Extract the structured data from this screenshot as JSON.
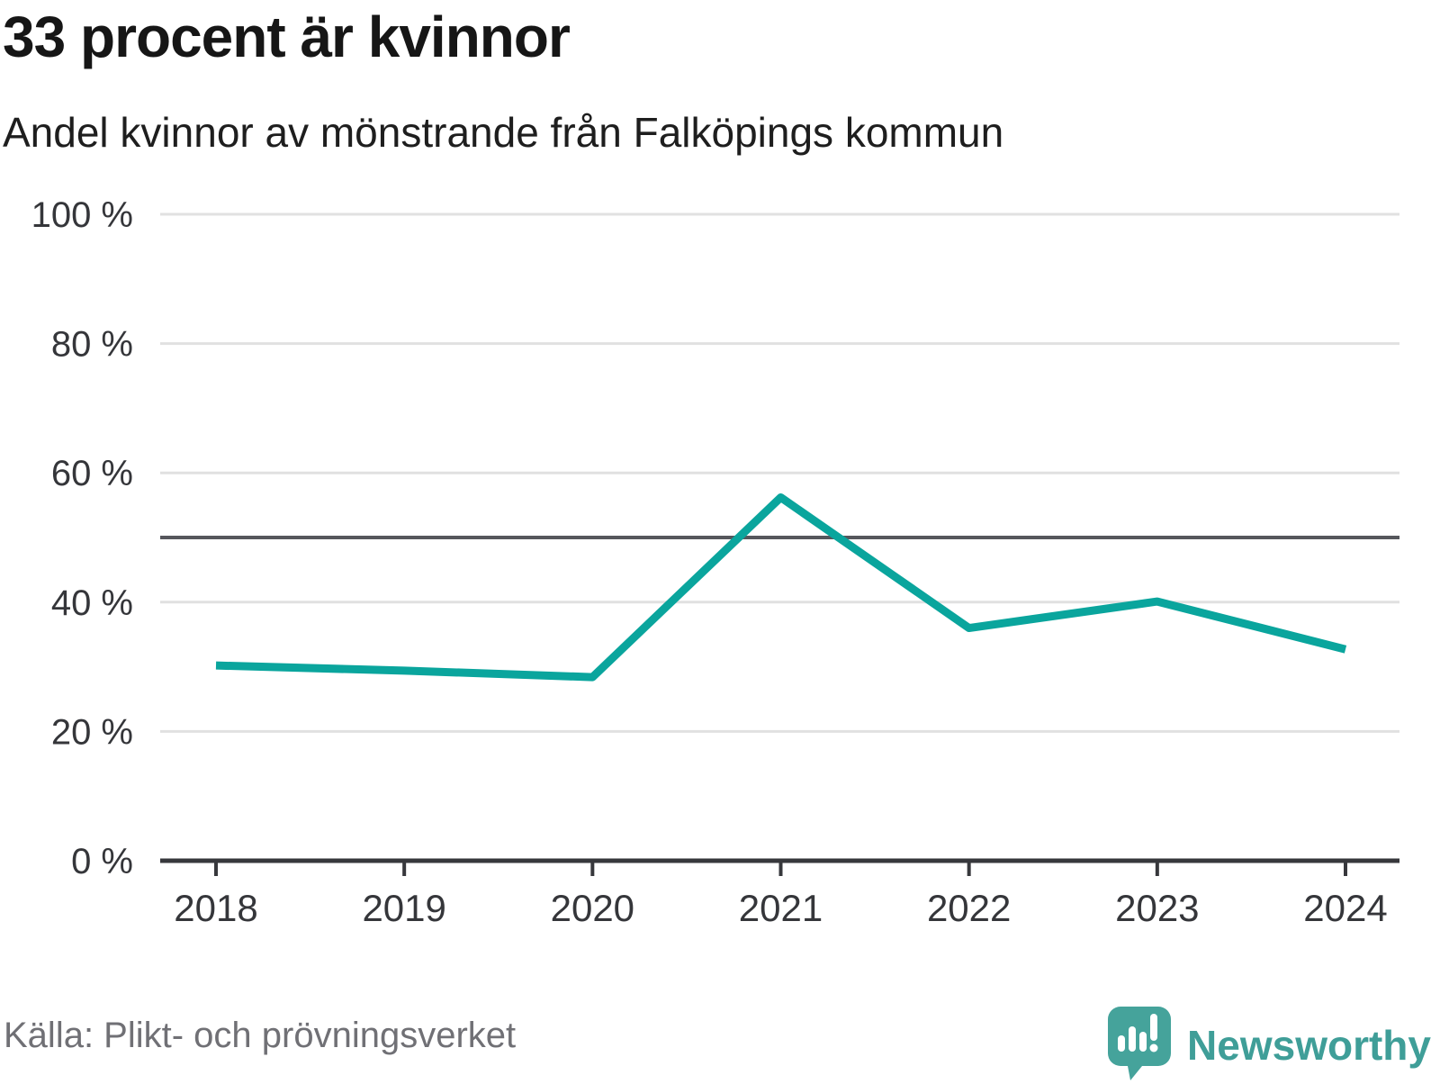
{
  "header": {
    "title": "33 procent är kvinnor",
    "subtitle": "Andel kvinnor av mönstrande från Falköpings kommun"
  },
  "footer": {
    "source": "Källa: Plikt- och prövningsverket",
    "brand": "Newsworthy"
  },
  "colors": {
    "line": "#0aa59d",
    "reference_line": "#56575c",
    "grid": "#e1e1e1",
    "axis": "#37383c",
    "tick_label": "#35363a",
    "brand_bubble": "#45a39b",
    "brand_text": "#3f9e98"
  },
  "chart_data": {
    "type": "line",
    "title": "33 procent är kvinnor",
    "subtitle": "Andel kvinnor av mönstrande från Falköpings kommun",
    "x": [
      2018,
      2019,
      2020,
      2021,
      2022,
      2023,
      2024
    ],
    "series": [
      {
        "name": "Andel kvinnor av mönstrande",
        "values": [
          30.2,
          29.4,
          28.4,
          56.2,
          36.0,
          40.1,
          32.7
        ]
      }
    ],
    "xlabel": "",
    "ylabel": "",
    "ylim": [
      0,
      100
    ],
    "yticks": [
      0,
      20,
      40,
      60,
      80,
      100
    ],
    "ytick_format": "{v} %",
    "reference_line": 50,
    "grid": "horizontal",
    "legend": "none",
    "source": "Källa: Plikt- och prövningsverket"
  }
}
